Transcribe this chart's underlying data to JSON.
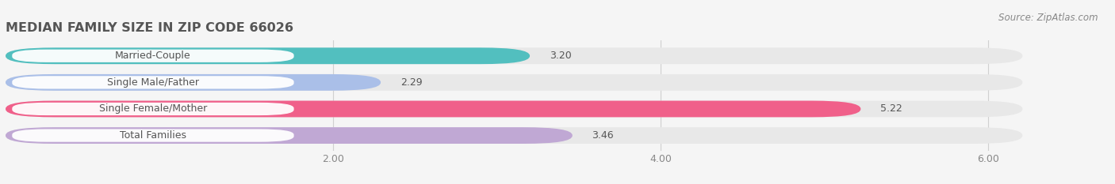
{
  "title": "MEDIAN FAMILY SIZE IN ZIP CODE 66026",
  "source_text": "Source: ZipAtlas.com",
  "categories": [
    "Married-Couple",
    "Single Male/Father",
    "Single Female/Mother",
    "Total Families"
  ],
  "values": [
    3.2,
    2.29,
    5.22,
    3.46
  ],
  "bar_colors": [
    "#52bfbf",
    "#aabfe8",
    "#f0608a",
    "#c0a8d4"
  ],
  "background_color": "#f5f5f5",
  "bar_bg_color": "#e8e8e8",
  "xlim_min": 0.0,
  "xlim_max": 6.5,
  "xticks": [
    2.0,
    4.0,
    6.0
  ],
  "title_fontsize": 11.5,
  "label_fontsize": 9,
  "value_fontsize": 9,
  "tick_fontsize": 9,
  "source_fontsize": 8.5
}
